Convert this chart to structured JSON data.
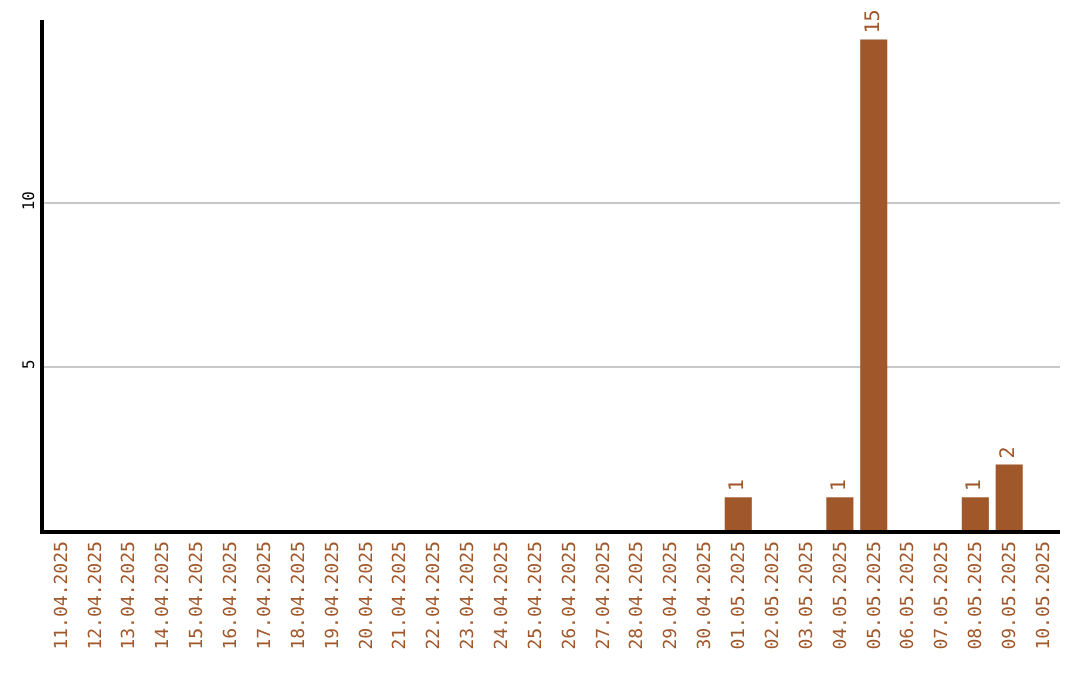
{
  "chart_data": {
    "type": "bar",
    "categories": [
      "11.04.2025",
      "12.04.2025",
      "13.04.2025",
      "14.04.2025",
      "15.04.2025",
      "16.04.2025",
      "17.04.2025",
      "18.04.2025",
      "19.04.2025",
      "20.04.2025",
      "21.04.2025",
      "22.04.2025",
      "23.04.2025",
      "24.04.2025",
      "25.04.2025",
      "26.04.2025",
      "27.04.2025",
      "28.04.2025",
      "29.04.2025",
      "30.04.2025",
      "01.05.2025",
      "02.05.2025",
      "03.05.2025",
      "04.05.2025",
      "05.05.2025",
      "06.05.2025",
      "07.05.2025",
      "08.05.2025",
      "09.05.2025",
      "10.05.2025"
    ],
    "values": [
      0,
      0,
      0,
      0,
      0,
      0,
      0,
      0,
      0,
      0,
      0,
      0,
      0,
      0,
      0,
      0,
      0,
      0,
      0,
      0,
      1,
      0,
      0,
      1,
      15,
      0,
      0,
      1,
      2,
      0
    ],
    "value_labels": [
      null,
      null,
      null,
      null,
      null,
      null,
      null,
      null,
      null,
      null,
      null,
      null,
      null,
      null,
      null,
      null,
      null,
      null,
      null,
      null,
      "1",
      null,
      null,
      "1",
      "15",
      null,
      null,
      "1",
      "2",
      null
    ],
    "color": "#a0572a",
    "ylim": [
      0,
      15.6
    ],
    "yticks": [
      5,
      10
    ],
    "grid": "y"
  }
}
